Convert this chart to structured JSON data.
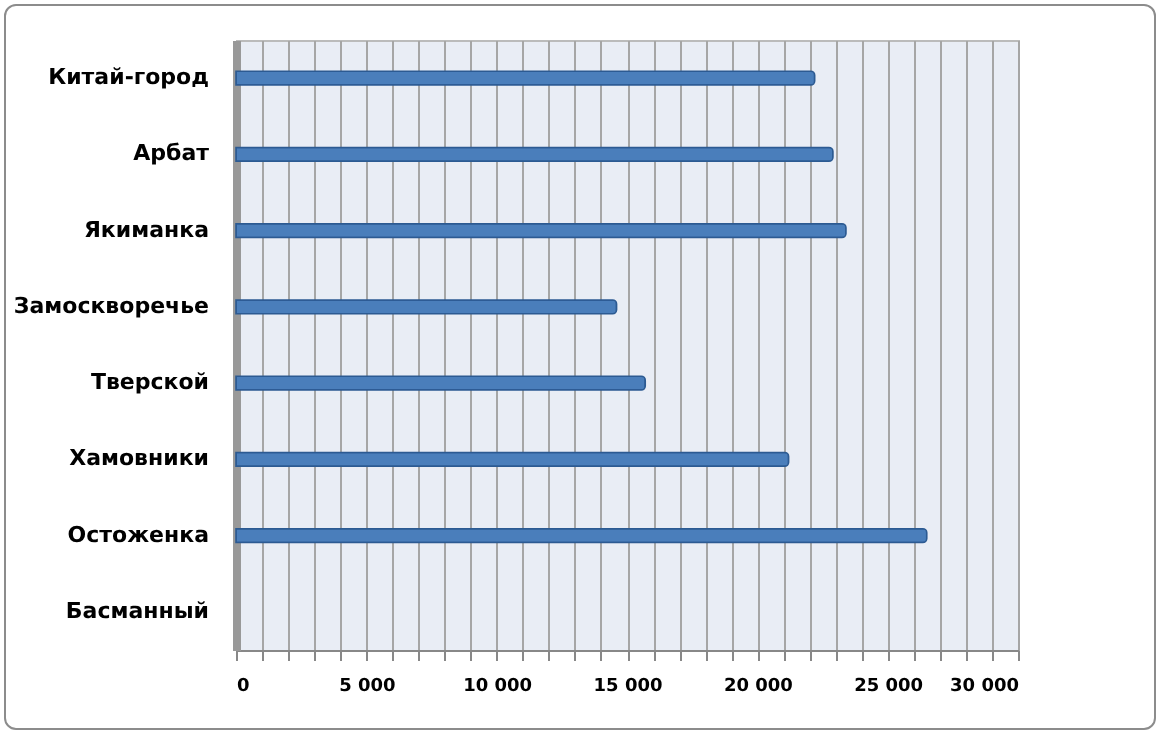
{
  "chart_data": {
    "type": "bar",
    "orientation": "horizontal",
    "categories": [
      "Китай-город",
      "Арбат",
      "Якиманка",
      "Замоскворечье",
      "Тверской",
      "Хамовники",
      "Остоженка",
      "Басманный"
    ],
    "values": [
      22200,
      22900,
      23400,
      14600,
      15700,
      21200,
      26500,
      null
    ],
    "color": "#4a7ebb",
    "xlim": [
      0,
      30000
    ],
    "xticks": [
      {
        "value": 0,
        "label": "0"
      },
      {
        "value": 1000,
        "label": null
      },
      {
        "value": 2000,
        "label": null
      },
      {
        "value": 3000,
        "label": null
      },
      {
        "value": 4000,
        "label": null
      },
      {
        "value": 5000,
        "label": "5 000"
      },
      {
        "value": 6000,
        "label": null
      },
      {
        "value": 7000,
        "label": null
      },
      {
        "value": 8000,
        "label": null
      },
      {
        "value": 9000,
        "label": null
      },
      {
        "value": 10000,
        "label": "10 000"
      },
      {
        "value": 11000,
        "label": null
      },
      {
        "value": 12000,
        "label": null
      },
      {
        "value": 13000,
        "label": null
      },
      {
        "value": 14000,
        "label": null
      },
      {
        "value": 15000,
        "label": "15 000"
      },
      {
        "value": 16000,
        "label": null
      },
      {
        "value": 17000,
        "label": null
      },
      {
        "value": 18000,
        "label": null
      },
      {
        "value": 19000,
        "label": null
      },
      {
        "value": 20000,
        "label": "20 000"
      },
      {
        "value": 21000,
        "label": null
      },
      {
        "value": 22000,
        "label": null
      },
      {
        "value": 23000,
        "label": null
      },
      {
        "value": 24000,
        "label": null
      },
      {
        "value": 25000,
        "label": "25 000"
      },
      {
        "value": 26000,
        "label": null
      },
      {
        "value": 27000,
        "label": null
      },
      {
        "value": 28000,
        "label": null
      },
      {
        "value": 29000,
        "label": null
      },
      {
        "value": 30000,
        "label": "30 000"
      }
    ],
    "grid": "x"
  }
}
